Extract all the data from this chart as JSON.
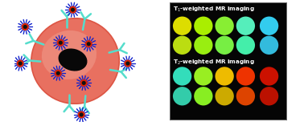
{
  "background_color": "#ffffff",
  "panel_bg": "#050505",
  "cell_color_center": "#f09080",
  "cell_color_edge": "#e05040",
  "nucleus_color": "#080808",
  "antibody_color": "#55ddcc",
  "nanoparticle_red": "#dd2200",
  "nanoparticle_spike": "#1122cc",
  "t1_label": "T$_1$-weighted MR imaging",
  "t2_label": "T$_2$-weighted MR imaging",
  "t1_rows": [
    [
      "#dddd00",
      "#aaee00",
      "#88ee33",
      "#55eebb",
      "#33ccee"
    ],
    [
      "#bbdd11",
      "#99ee11",
      "#77ee44",
      "#44eeaa",
      "#33bbdd"
    ]
  ],
  "t2_rows": [
    [
      "#33ddbb",
      "#99ee22",
      "#eebb00",
      "#ee3300",
      "#cc1100"
    ],
    [
      "#33ccaa",
      "#88ee22",
      "#ccaa00",
      "#dd4400",
      "#bb1100"
    ]
  ],
  "label_color": "#ffffff",
  "label_fontsize": 5.2,
  "t1_sub": "1",
  "t2_sub": "2"
}
